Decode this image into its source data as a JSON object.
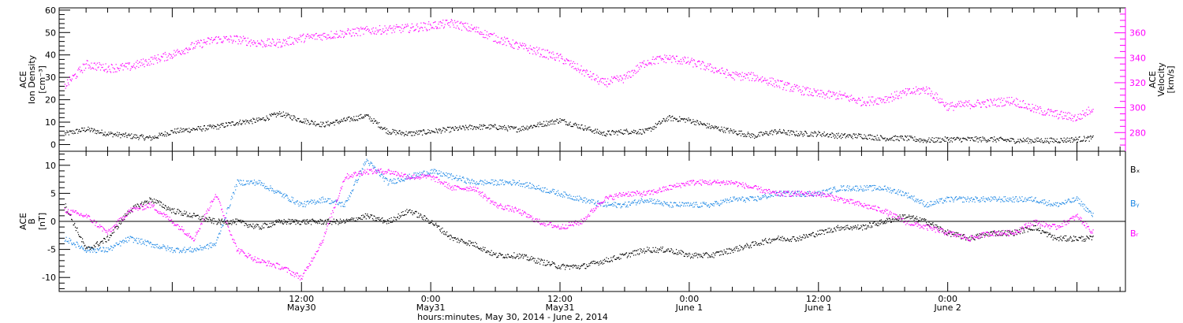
{
  "colors": {
    "density": "#000000",
    "velocity": "#ff00ff",
    "bx": "#000000",
    "by": "#1e88e5",
    "bz": "#ff00ff",
    "frame": "#000000"
  },
  "chart_data": [
    {
      "type": "scatter",
      "panel": "top",
      "x_unit": "hours since 2014-05-30 00:00 UT",
      "xlim": [
        -10.5,
        88.5
      ],
      "ylabel_left": [
        "ACE",
        "Ion Density",
        "[cm⁻³]"
      ],
      "ylabel_right": [
        "ACE",
        "Velocity",
        "[km/s]"
      ],
      "ylim_left": [
        -3,
        61
      ],
      "yticks_left": [
        0,
        10,
        20,
        30,
        40,
        50,
        60
      ],
      "ylim_right": [
        265,
        380
      ],
      "yticks_right": [
        280,
        300,
        320,
        340,
        360
      ],
      "series": [
        {
          "axis": "left",
          "color_key": "density",
          "x": [
            -10,
            -8,
            -6,
            -4,
            -2,
            0,
            2,
            4,
            6,
            8,
            10,
            12,
            14,
            16,
            18,
            20,
            22,
            24,
            26,
            28,
            30,
            32,
            34,
            36,
            38,
            40,
            42,
            44,
            46,
            48,
            50,
            52,
            54,
            56,
            58,
            60,
            62,
            64,
            66,
            68,
            70,
            72,
            74,
            76,
            78,
            80,
            82,
            84,
            85.5
          ],
          "y": [
            5,
            7,
            5,
            4,
            3,
            6,
            7,
            8,
            10,
            11,
            14,
            11,
            9,
            11,
            13,
            6,
            5,
            6,
            7,
            8,
            8,
            7,
            9,
            11,
            8,
            5,
            6,
            6,
            12,
            11,
            8,
            6,
            4,
            6,
            5,
            5,
            4,
            4,
            3,
            3,
            2,
            2.5,
            2.5,
            2.5,
            2,
            2,
            2,
            2.5,
            3
          ]
        },
        {
          "axis": "right",
          "color_key": "velocity",
          "x": [
            -10,
            -8,
            -6,
            -4,
            -2,
            0,
            2,
            4,
            6,
            8,
            10,
            12,
            14,
            16,
            18,
            20,
            22,
            24,
            26,
            28,
            30,
            32,
            34,
            36,
            38,
            40,
            42,
            44,
            46,
            48,
            50,
            52,
            54,
            56,
            58,
            60,
            62,
            64,
            66,
            68,
            70,
            72,
            74,
            76,
            78,
            80,
            82,
            84,
            85.5
          ],
          "y": [
            318,
            335,
            332,
            333,
            338,
            343,
            350,
            355,
            355,
            352,
            352,
            356,
            358,
            360,
            362,
            363,
            364,
            366,
            368,
            363,
            356,
            350,
            345,
            340,
            330,
            320,
            324,
            337,
            340,
            337,
            332,
            326,
            325,
            320,
            315,
            311,
            310,
            305,
            307,
            312,
            315,
            301,
            303,
            304,
            306,
            299,
            295,
            292,
            300
          ]
        }
      ]
    },
    {
      "type": "scatter",
      "panel": "bottom",
      "x_unit": "hours since 2014-05-30 00:00 UT",
      "xlim": [
        -10.5,
        88.5
      ],
      "ylabel_left": [
        "ACE",
        "B",
        "[nT]"
      ],
      "ylim": [
        -12.5,
        12.5
      ],
      "yticks": [
        -10,
        -5,
        0,
        5,
        10
      ],
      "zero_line": true,
      "legend_position": "right",
      "series": [
        {
          "name": "Bₓ",
          "color_key": "bx",
          "x": [
            -10,
            -8,
            -6,
            -4,
            -2,
            0,
            2,
            4,
            6,
            8,
            10,
            12,
            14,
            16,
            18,
            20,
            22,
            24,
            26,
            28,
            30,
            32,
            34,
            36,
            38,
            40,
            42,
            44,
            46,
            48,
            50,
            52,
            54,
            56,
            58,
            60,
            62,
            64,
            66,
            68,
            70,
            72,
            74,
            76,
            78,
            80,
            82,
            84,
            85.5
          ],
          "y": [
            3,
            -5,
            -3,
            2,
            4,
            2,
            1,
            0,
            0,
            -1,
            0,
            0,
            0,
            0,
            1,
            0,
            2,
            0,
            -3,
            -4,
            -6,
            -6,
            -7,
            -8,
            -8,
            -7,
            -6,
            -5,
            -5,
            -6,
            -6,
            -5,
            -4,
            -3,
            -3,
            -2,
            -1,
            -1,
            0,
            1,
            0,
            -2,
            -3,
            -2,
            -2,
            -1,
            -3,
            -3,
            -3
          ]
        },
        {
          "name": "Bᵧ",
          "color_key": "by",
          "x": [
            -10,
            -8,
            -6,
            -4,
            -2,
            0,
            2,
            4,
            6,
            8,
            10,
            12,
            14,
            16,
            18,
            20,
            22,
            24,
            26,
            28,
            30,
            32,
            34,
            36,
            38,
            40,
            42,
            44,
            46,
            48,
            50,
            52,
            54,
            56,
            58,
            60,
            62,
            64,
            66,
            68,
            70,
            72,
            74,
            76,
            78,
            80,
            82,
            84,
            85.5
          ],
          "y": [
            -3,
            -5,
            -5,
            -3,
            -4,
            -5,
            -5,
            -4,
            7,
            7,
            5,
            3,
            4,
            3,
            11,
            7,
            8,
            9,
            8,
            7,
            7,
            7,
            6,
            5,
            4,
            3,
            3,
            4,
            3,
            3,
            3,
            4,
            4,
            5,
            5,
            5,
            6,
            6,
            6,
            5,
            3,
            4,
            4,
            4,
            4,
            4,
            3,
            4,
            1
          ]
        },
        {
          "name": "Bᵣ",
          "color_key": "bz",
          "x": [
            -10,
            -8,
            -6,
            -4,
            -2,
            0,
            2,
            4,
            6,
            8,
            10,
            12,
            14,
            16,
            18,
            20,
            22,
            24,
            26,
            28,
            30,
            32,
            34,
            36,
            38,
            40,
            42,
            44,
            46,
            48,
            50,
            52,
            54,
            56,
            58,
            60,
            62,
            64,
            66,
            68,
            70,
            72,
            74,
            76,
            78,
            80,
            82,
            84,
            85.5
          ],
          "y": [
            2,
            1,
            -2,
            2,
            3,
            0,
            -3,
            5,
            -5,
            -7,
            -8,
            -10,
            -3,
            8,
            9,
            9,
            8,
            8,
            6,
            6,
            3,
            2,
            0,
            -1,
            0,
            4,
            5,
            5,
            6,
            7,
            7,
            7,
            6,
            5,
            5,
            5,
            4,
            3,
            2,
            0,
            -1,
            -2,
            -3,
            -2,
            -2,
            0,
            -1,
            1,
            -2
          ]
        }
      ]
    }
  ],
  "x_axis": {
    "ticks": [
      {
        "label": "12:00",
        "date": "May30"
      },
      {
        "label": "0:00",
        "date": "May31"
      },
      {
        "label": "12:00",
        "date": "May31"
      },
      {
        "label": "0:00",
        "date": "June 1"
      },
      {
        "label": "12:00",
        "date": "June 1"
      },
      {
        "label": "0:00",
        "date": "June 2"
      }
    ],
    "title": "hours:minutes, May 30, 2014 - June  2, 2014"
  }
}
